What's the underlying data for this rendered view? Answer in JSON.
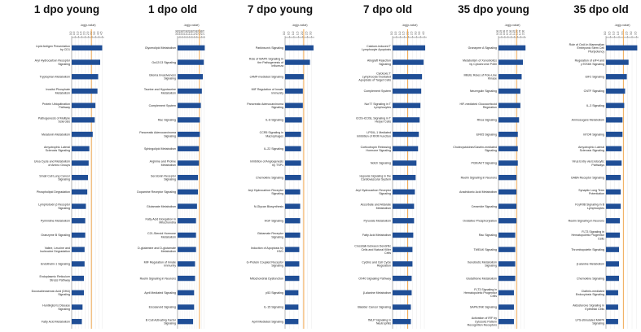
{
  "colors": {
    "bar": "#1f4e96",
    "threshold": "#f0a040",
    "axis": "#555555",
    "grid": "#dddddd"
  },
  "chart_data": [
    {
      "type": "bar",
      "title": "1 dpo young",
      "xlabel": "-log(p-value)",
      "xticks": [
        "0.0",
        "0.5",
        "1.0",
        "1.5",
        "2.0",
        "2.5",
        "3.0",
        "3.5",
        "4.0",
        "4.5"
      ],
      "xlim": [
        0,
        4.8
      ],
      "threshold": 2.9,
      "categories": [
        "Lipid Antigen Presentation by CD1",
        "Aryl Hydrocarbon Receptor Signaling",
        "Tryptophan Metabolism",
        "Inositol Phosphate Metabolism",
        "Protein Ubiquitination Pathway",
        "Pathogenesis of Multiple Sclerosis",
        "Melatonin Metabolism",
        "Amyotrophic Lateral Sclerosis Signaling",
        "Urea Cycle and Metabolism of Amino Groups",
        "Small Cell Lung Cancer Signaling",
        "Phospholipid Degradation",
        "Lymphotoxin β Receptor Signaling",
        "Pyrimidine Metabolism",
        "Granzyme B Signaling",
        "Valine, Leucine and Isoleucine Degradation",
        "Endothelin-1 Signaling",
        "Endoplasmic Reticulum Stress Pathway",
        "Docosahexaenoic Acid (DHA) Signaling",
        "Huntington's Disease Signaling",
        "Fatty Acid Metabolism"
      ],
      "values": [
        4.5,
        4.2,
        3.9,
        3.8,
        3.5,
        3.4,
        3.1,
        2.6,
        2.5,
        2.4,
        2.3,
        2.1,
        2.0,
        2.0,
        1.9,
        1.9,
        1.8,
        1.8,
        1.6,
        1.5
      ]
    },
    {
      "type": "bar",
      "title": "1 dpo old",
      "xlabel": "-log(p-value)",
      "xticks": [
        "0.00",
        "0.25",
        "0.50",
        "0.75",
        "1.00",
        "1.25",
        "1.50",
        "1.75",
        "2.00",
        "2.25",
        "2.50",
        "2.75"
      ],
      "xlim": [
        0,
        2.85
      ],
      "threshold": 2.25,
      "categories": [
        "Glycerolipid Metabolism",
        "Gα12/13 Signaling",
        "Glioma Invasiveness Signaling",
        "Taurine and Hypotaurine Metabolism",
        "Complement System",
        "Rac Signaling",
        "Pancreatic Adenocarcinoma Signaling",
        "Sphingolipid Metabolism",
        "Arginine and Proline Metabolism",
        "Serotonin Receptor Signaling",
        "Dopamine Receptor Signaling",
        "Glutamate Metabolism",
        "Fatty Acid Elongation in Mitochondria",
        "C21-Steroid Hormone Metabolism",
        "D-glutamine and D-glutamate Metabolism",
        "MIF Regulation of Innate Immunity",
        "Reelin Signaling in Neurons",
        "April Mediated Signaling",
        "Eicosanoid Signaling",
        "B Cell Activating Factor Signaling"
      ],
      "values": [
        2.8,
        2.7,
        2.6,
        2.5,
        2.4,
        2.3,
        2.3,
        2.2,
        2.2,
        2.1,
        2.1,
        2.0,
        1.9,
        1.9,
        1.9,
        1.8,
        1.8,
        1.7,
        1.7,
        1.6
      ]
    },
    {
      "type": "bar",
      "title": "7 dpo young",
      "xlabel": "-log(p-value)",
      "xticks": [
        "0.0",
        "0.5",
        "1.0",
        "1.5",
        "2.0",
        "2.5",
        "3.0"
      ],
      "xlim": [
        0,
        3.3
      ],
      "threshold": 2.1,
      "categories": [
        "Parkinson's Signaling",
        "Role of MAPK Signaling in the Pathogenesis of Influenza",
        "cAMP-mediated Signaling",
        "MIF Regulation of Innate Immunity",
        "Pancreatic Adenocarcinoma Signaling",
        "IL-8 Signaling",
        "CCR5 Signaling in Macrophages",
        "IL-22 Signaling",
        "Inhibition of Angiogenesis by TSP1",
        "Chemokine Signaling",
        "Aryl Hydrocarbon Receptor Signaling",
        "N-Glycan Biosynthesis",
        "HGF Signaling",
        "Glutamate Receptor Signaling",
        "Induction of Apoptosis by HIV1",
        "G-Protein Coupled Receptor Signaling",
        "Mitochondrial Dysfunction",
        "p53 Signaling",
        "IL-15 Signaling",
        "April Mediated Signaling"
      ],
      "values": [
        3.2,
        2.8,
        2.1,
        2.0,
        2.0,
        1.9,
        1.8,
        1.8,
        1.8,
        1.8,
        1.7,
        1.7,
        1.7,
        1.7,
        1.6,
        1.6,
        1.6,
        1.5,
        1.5,
        1.5
      ]
    },
    {
      "type": "bar",
      "title": "7 dpo old",
      "xlabel": "-log(p-value)",
      "xticks": [
        "0.0",
        "0.5",
        "1.0",
        "1.5",
        "2.0",
        "2.5",
        "3.0",
        "3.5",
        "4.0"
      ],
      "xlim": [
        0,
        4.3
      ],
      "threshold": 1.9,
      "categories": [
        "Calcium-induced T Lymphocyte Apoptosis",
        "Allograft Rejection Signaling",
        "Cytotoxic T Lymphocyte-mediated Apoptosis of Target Cells",
        "Complement System",
        "Nur77 Signaling in T Lymphocytes",
        "iCOS-iCOSL Signaling in T Helper Cells",
        "LPS/IL-1 Mediated Inhibition of RXR Function",
        "Corticotropin Releasing Hormone Signaling",
        "Notch Signaling",
        "Hypoxia Signaling in the Cardiovascular System",
        "Aryl Hydrocarbon Receptor Signaling",
        "Ascorbate and Aldarate Metabolism",
        "Pyruvate Metabolism",
        "Fatty Acid Metabolism",
        "Crosstalk between Dendritic Cells and Natural Killer Cells",
        "Cyclins and Cell Cycle Regulation",
        "OX40 Signaling Pathway",
        "β-alanine Metabolism",
        "Bladder Cancer Signaling",
        "fMLP Signaling in Neutrophils"
      ],
      "values": [
        4.1,
        3.9,
        3.7,
        3.6,
        3.5,
        3.4,
        3.3,
        3.2,
        3.0,
        2.9,
        2.8,
        2.7,
        2.7,
        2.6,
        2.5,
        2.5,
        2.4,
        2.4,
        2.3,
        2.3
      ]
    },
    {
      "type": "bar",
      "title": "35 dpo young",
      "xlabel": "-log(p-value)",
      "xticks": [
        "0.00",
        "0.25",
        "0.50",
        "0.75",
        "1.00",
        "1.25",
        "1.50",
        "1.75",
        "2.00"
      ],
      "xlim": [
        0,
        2.15
      ],
      "threshold": 1.4,
      "categories": [
        "Granzyme A Signaling",
        "Metabolism of Xenobiotics by Cytochrome P450",
        "Mitotic Roles of Polo-Like Kinase",
        "Neuregulin Signaling",
        "HIF-mediated Glucocorticoid Regulation",
        "Rhoa Signaling",
        "ERK5 Signaling",
        "Cholecystokinin/Gastrin-mediated Signaling",
        "PI3K/AKT Signaling",
        "Reelin Signaling in Neurons",
        "Arachidonic Acid Metabolism",
        "Ceramide Signaling",
        "Oxidative Phosphorylation",
        "Rac Signaling",
        "TWEAK Signaling",
        "Xenobiotic Metabolism Signaling",
        "Glutathione Metabolism",
        "FLT3 Signaling in Hematopoietic Progenitor Cells",
        "SAPK/JNK Signaling",
        "Activation of IRF by Cytosolic Pattern Recognition Receptors"
      ],
      "values": [
        2.1,
        1.9,
        1.8,
        1.7,
        1.7,
        1.6,
        1.5,
        1.5,
        1.5,
        1.4,
        1.4,
        1.4,
        1.4,
        1.3,
        1.3,
        1.3,
        1.3,
        1.2,
        1.2,
        1.2
      ]
    },
    {
      "type": "bar",
      "title": "35 dpo old",
      "xlabel": "-log(p-value)",
      "xticks": [
        "0.0",
        "0.5",
        "1.0",
        "1.5",
        "2.0",
        "2.5",
        "3.0",
        "3.5"
      ],
      "xlim": [
        0,
        3.75
      ],
      "threshold": 2.0,
      "categories": [
        "Role of Oct4 in Mammalian Embryonic Stem Cell Pluripotency",
        "Regulation of eIF4 and p70S6K Signaling",
        "EIF2 Signaling",
        "CNTF Signaling",
        "IL-3 Signaling",
        "Aminosugars Metabolism",
        "mTOR Signaling",
        "Amyotrophic Lateral Sclerosis Signaling",
        "Virus Entry via Endocytic Pathways",
        "GABA Receptor Signaling",
        "Synaptic Long Term Potentiation",
        "FcγRIIB Signaling in B Lymphocytes",
        "Reelin Signaling in Neurons",
        "FLT3 Signaling in Hematopoietic Progenitor Cells",
        "Thrombopoietin Signaling",
        "β-alanine Metabolism",
        "Chemokine Signaling",
        "Clathrin-mediated Endocytosis Signaling",
        "Aldosterone Signaling in Epithelial Cells",
        "LPS-stimulated MAPK Signaling"
      ],
      "values": [
        3.6,
        2.6,
        2.4,
        2.2,
        2.1,
        1.9,
        1.9,
        1.8,
        1.8,
        1.7,
        1.7,
        1.7,
        1.6,
        1.6,
        1.5,
        1.5,
        1.5,
        1.4,
        1.4,
        1.4
      ]
    }
  ]
}
